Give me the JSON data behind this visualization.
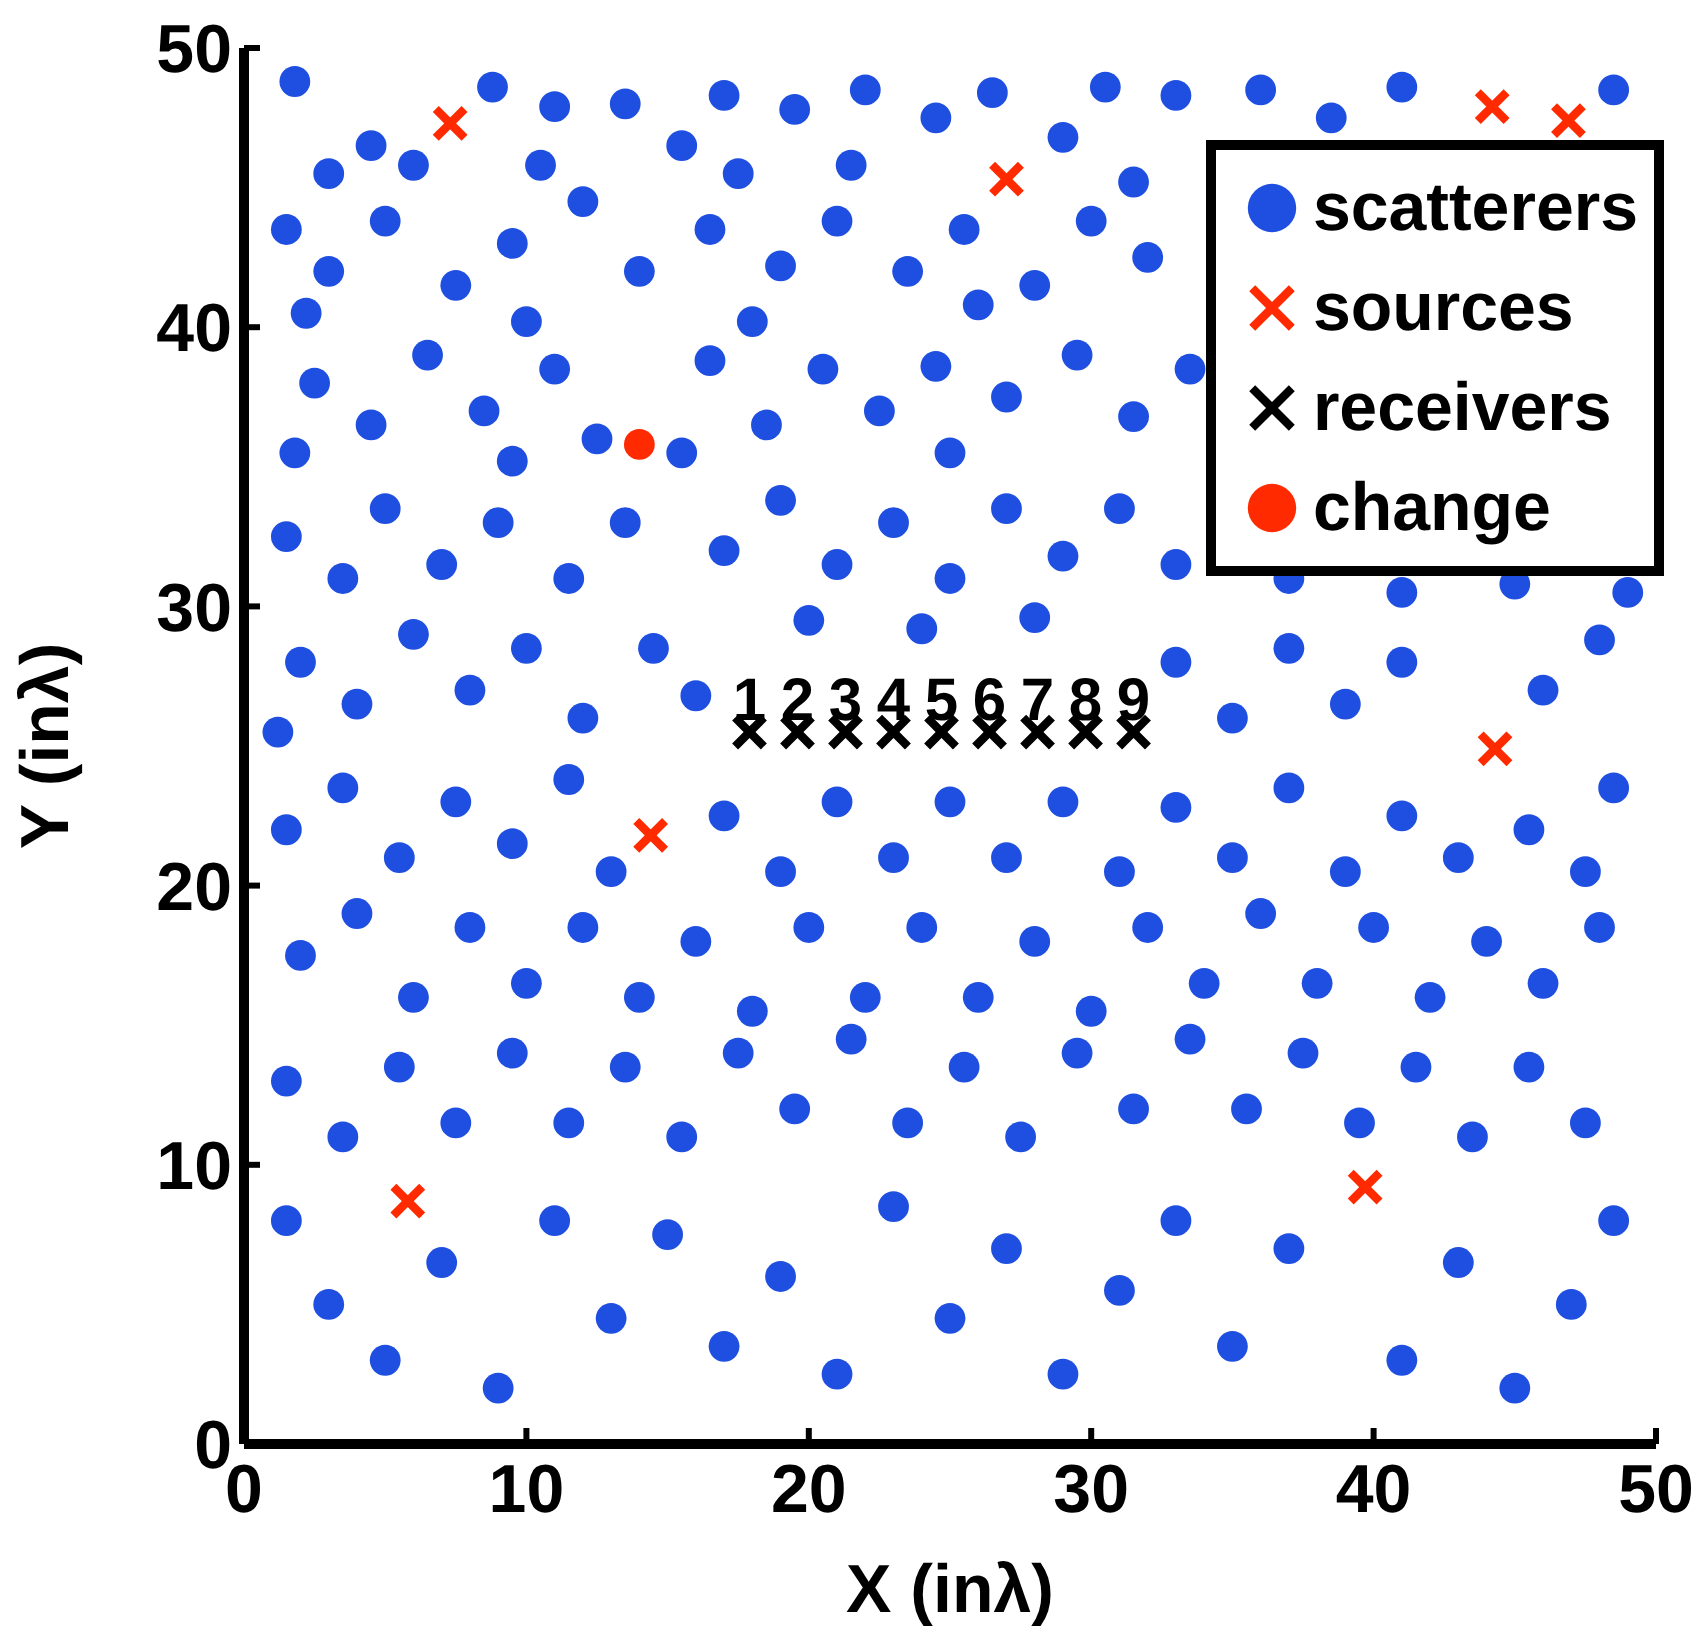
{
  "chart_data": {
    "type": "scatter",
    "xlabel": "X (inλ)",
    "ylabel": "Y (inλ)",
    "xlim": [
      0,
      50
    ],
    "ylim": [
      0,
      50
    ],
    "xticks": [
      0,
      10,
      20,
      30,
      40,
      50
    ],
    "yticks": [
      0,
      10,
      20,
      30,
      40,
      50
    ],
    "grid": false,
    "legend": "top right",
    "series": [
      {
        "name": "scatterers",
        "color": "#1f4fe0",
        "marker": "circle",
        "x": [
          1.8,
          4.5,
          6,
          8.8,
          11,
          13.5,
          15.5,
          17,
          19.5,
          22,
          24.5,
          26.5,
          29,
          30.5,
          33,
          36,
          38.5,
          41,
          48.5,
          3,
          10.5,
          17.5,
          21.5,
          31.5,
          1.5,
          3,
          5,
          7.5,
          9.5,
          12,
          14,
          16.5,
          19,
          21,
          23.5,
          25.5,
          28,
          30,
          32,
          2.2,
          10,
          18,
          26,
          2.5,
          4.5,
          6.5,
          8.5,
          11,
          12.5,
          16.5,
          18.5,
          20.5,
          22.5,
          24.5,
          27,
          29.5,
          31.5,
          33.5,
          1.8,
          9.5,
          15.5,
          25,
          1.5,
          3.5,
          5,
          7,
          9,
          11.5,
          13.5,
          17,
          19,
          21,
          23,
          25,
          27,
          29,
          31,
          33,
          37,
          41,
          45,
          49,
          2,
          4,
          6,
          8,
          10,
          12,
          14.5,
          16,
          20,
          24,
          28,
          33,
          35,
          37,
          39,
          41,
          46,
          48,
          1.2,
          1.5,
          3.5,
          5.5,
          7.5,
          9.5,
          11.5,
          13,
          17,
          19,
          21,
          23,
          25,
          27,
          29,
          31,
          33,
          35,
          37,
          39,
          41,
          43,
          45.5,
          47.5,
          48.5,
          2,
          4,
          6,
          8,
          10,
          12,
          14,
          16,
          18,
          20,
          22,
          24,
          26,
          28,
          30,
          32,
          34,
          36,
          38,
          40,
          42,
          44,
          46,
          48,
          1.5,
          3.5,
          5.5,
          7.5,
          9.5,
          11.5,
          13.5,
          15.5,
          17.5,
          19.5,
          21.5,
          23.5,
          25.5,
          27.5,
          29.5,
          31.5,
          33.5,
          35.5,
          37.5,
          39.5,
          41.5,
          43.5,
          45.5,
          47.5,
          1.5,
          3,
          5,
          7,
          9,
          11,
          13,
          15,
          17,
          19,
          21,
          23,
          25,
          27,
          29,
          31,
          33,
          35,
          37,
          41,
          43,
          45,
          47,
          48.5
        ],
        "values": [
          48.8,
          46.5,
          45.8,
          48.6,
          47.9,
          48,
          46.5,
          48.3,
          47.8,
          48.5,
          47.5,
          48.4,
          46.8,
          48.6,
          48.3,
          48.5,
          47.5,
          48.6,
          48.5,
          45.5,
          45.8,
          45.5,
          45.8,
          45.2,
          43.5,
          42,
          43.8,
          41.5,
          43,
          44.5,
          42,
          43.5,
          42.2,
          43.8,
          42,
          43.5,
          41.5,
          43.8,
          42.5,
          40.5,
          40.2,
          40.2,
          40.8,
          38,
          36.5,
          39,
          37,
          38.5,
          36,
          38.8,
          36.5,
          38.5,
          37,
          38.6,
          37.5,
          39,
          36.8,
          38.5,
          35.5,
          35.2,
          35.5,
          35.5,
          32.5,
          31,
          33.5,
          31.5,
          33,
          31,
          33,
          32,
          33.8,
          31.5,
          33,
          31,
          33.5,
          31.8,
          33.5,
          31.5,
          31,
          30.5,
          30.8,
          30.5,
          28,
          26.5,
          29,
          27,
          28.5,
          26,
          28.5,
          26.8,
          29.5,
          29.2,
          29.6,
          28,
          26,
          28.5,
          26.5,
          28,
          27,
          28.8,
          25.5,
          22,
          23.5,
          21,
          23,
          21.5,
          23.8,
          20.5,
          22.5,
          20.5,
          23,
          21,
          23,
          21,
          23,
          20.5,
          22.8,
          21,
          23.5,
          20.5,
          22.5,
          21,
          22,
          20.5,
          23.5,
          17.5,
          19,
          16,
          18.5,
          16.5,
          18.5,
          16,
          18,
          15.5,
          18.5,
          16,
          18.5,
          16,
          18,
          15.5,
          18.5,
          16.5,
          19,
          16.5,
          18.5,
          16,
          18,
          16.5,
          18.5,
          13,
          11,
          13.5,
          11.5,
          14,
          11.5,
          13.5,
          11,
          14,
          12,
          14.5,
          11.5,
          13.5,
          11,
          14,
          12,
          14.5,
          12,
          14,
          11.5,
          13.5,
          11,
          13.5,
          11.5,
          8,
          5,
          3,
          6.5,
          2,
          8,
          4.5,
          7.5,
          3.5,
          6,
          2.5,
          8.5,
          4.5,
          7,
          2.5,
          5.5,
          8,
          3.5,
          7,
          3,
          6.5,
          2,
          5,
          8
        ]
      },
      {
        "name": "sources",
        "color": "#ff2a00",
        "marker": "cross",
        "x": [
          7.3,
          27,
          44.2,
          46.9,
          44.3,
          14.4,
          5.8,
          39.7
        ],
        "values": [
          47.3,
          45.3,
          47.9,
          47.4,
          24.9,
          21.8,
          8.7,
          9.2
        ]
      },
      {
        "name": "receivers",
        "color": "#000000",
        "marker": "cross",
        "x": [
          17.9,
          19.6,
          21.3,
          23,
          24.7,
          26.4,
          28.1,
          29.8,
          31.5
        ],
        "values": [
          25.5,
          25.5,
          25.5,
          25.5,
          25.5,
          25.5,
          25.5,
          25.5,
          25.5
        ]
      },
      {
        "name": "change",
        "color": "#ff2a00",
        "marker": "circle",
        "x": [
          14
        ],
        "values": [
          35.8
        ]
      }
    ],
    "annotations": [
      {
        "text": "1",
        "x": 17.9,
        "y": 25.5
      },
      {
        "text": "2",
        "x": 19.6,
        "y": 25.5
      },
      {
        "text": "3",
        "x": 21.3,
        "y": 25.5
      },
      {
        "text": "4",
        "x": 23,
        "y": 25.5
      },
      {
        "text": "5",
        "x": 24.7,
        "y": 25.5
      },
      {
        "text": "6",
        "x": 26.4,
        "y": 25.5
      },
      {
        "text": "7",
        "x": 28.1,
        "y": 25.5
      },
      {
        "text": "8",
        "x": 29.8,
        "y": 25.5
      },
      {
        "text": "9",
        "x": 31.5,
        "y": 25.5
      }
    ]
  }
}
